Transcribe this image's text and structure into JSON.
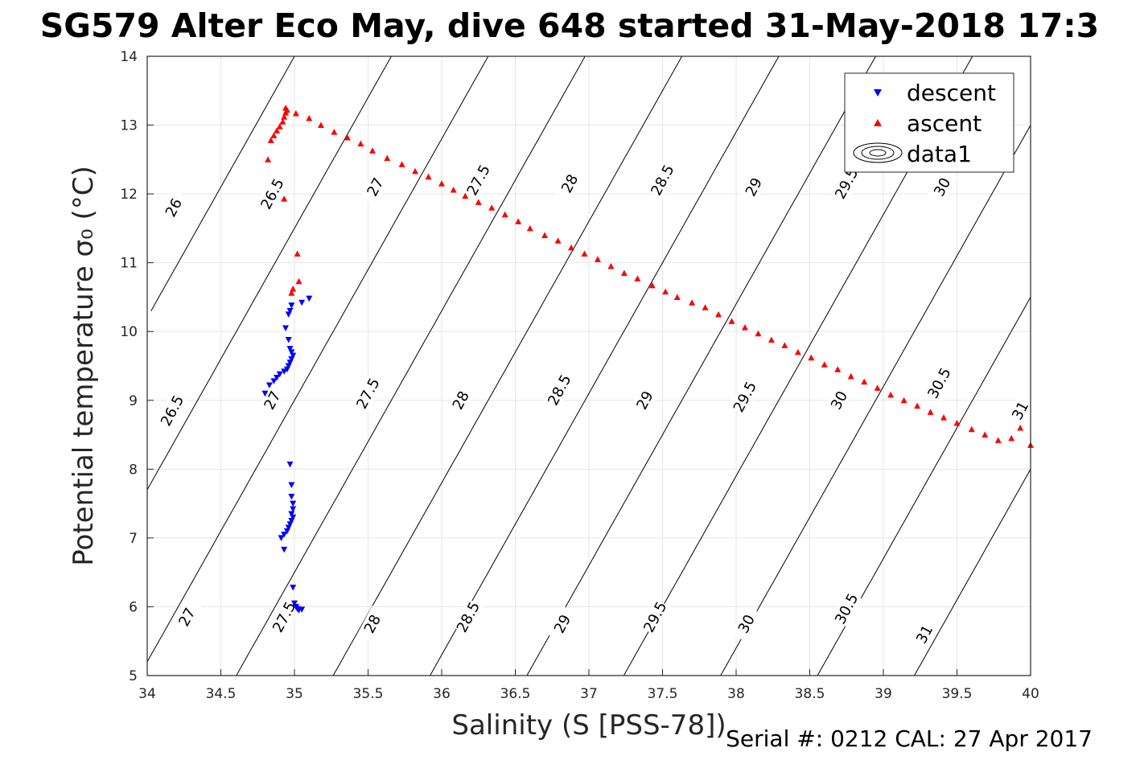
{
  "chart_data": {
    "type": "scatter",
    "title": "SG579 Alter Eco May, dive 648 started 31-May-2018 17:3",
    "xlabel": "Salinity (S [PSS-78])",
    "ylabel": "Potential temperature σ₀ (°C)",
    "footer": "Serial #: 0212  CAL: 27 Apr 2017",
    "xlim": [
      34,
      40
    ],
    "ylim": [
      5,
      14
    ],
    "xticks": [
      "34",
      "34.5",
      "35",
      "35.5",
      "36",
      "36.5",
      "37",
      "37.5",
      "38",
      "38.5",
      "39",
      "39.5",
      "40"
    ],
    "yticks": [
      "5",
      "6",
      "7",
      "8",
      "9",
      "10",
      "11",
      "12",
      "13",
      "14"
    ],
    "grid": true,
    "legend_position": "top-right",
    "legend": [
      {
        "label": "descent",
        "marker": "triangle-down",
        "color": "#0000ff"
      },
      {
        "label": "ascent",
        "marker": "triangle-up",
        "color": "#ff0000"
      },
      {
        "label": "data1",
        "marker": "contour",
        "color": "#000000"
      }
    ],
    "contour_levels": [
      26,
      26.5,
      27,
      27.5,
      28,
      28.5,
      29,
      29.5,
      30,
      30.5,
      31
    ],
    "contour_labels": [
      {
        "text": "26",
        "s": 34.18,
        "t": 11.8
      },
      {
        "text": "26.5",
        "s": 34.85,
        "t": 12.0
      },
      {
        "text": "27",
        "s": 35.55,
        "t": 12.1
      },
      {
        "text": "27.5",
        "s": 36.25,
        "t": 12.2
      },
      {
        "text": "28",
        "s": 36.87,
        "t": 12.15
      },
      {
        "text": "28.5",
        "s": 37.5,
        "t": 12.2
      },
      {
        "text": "29",
        "s": 38.12,
        "t": 12.1
      },
      {
        "text": "29.5",
        "s": 38.75,
        "t": 12.15
      },
      {
        "text": "30",
        "s": 39.4,
        "t": 12.1
      },
      {
        "text": "26.5",
        "s": 34.17,
        "t": 8.85
      },
      {
        "text": "27",
        "s": 34.85,
        "t": 9.0
      },
      {
        "text": "27.5",
        "s": 35.5,
        "t": 9.1
      },
      {
        "text": "28",
        "s": 36.13,
        "t": 9.0
      },
      {
        "text": "28.5",
        "s": 36.8,
        "t": 9.15
      },
      {
        "text": "29",
        "s": 37.38,
        "t": 9.0
      },
      {
        "text": "29.5",
        "s": 38.06,
        "t": 9.05
      },
      {
        "text": "30",
        "s": 38.7,
        "t": 9.0
      },
      {
        "text": "30.5",
        "s": 39.38,
        "t": 9.25
      },
      {
        "text": "31",
        "s": 39.93,
        "t": 8.85
      },
      {
        "text": "27",
        "s": 34.27,
        "t": 5.85
      },
      {
        "text": "27.5",
        "s": 34.93,
        "t": 5.85
      },
      {
        "text": "28",
        "s": 35.53,
        "t": 5.75
      },
      {
        "text": "28.5",
        "s": 36.18,
        "t": 5.85
      },
      {
        "text": "29",
        "s": 36.82,
        "t": 5.75
      },
      {
        "text": "29.5",
        "s": 37.45,
        "t": 5.85
      },
      {
        "text": "30",
        "s": 38.07,
        "t": 5.75
      },
      {
        "text": "30.5",
        "s": 38.75,
        "t": 5.97
      },
      {
        "text": "31",
        "s": 39.28,
        "t": 5.6
      }
    ],
    "series": [
      {
        "name": "descent",
        "marker": "triangle-down",
        "color": "#0000ff",
        "points": [
          [
            35.1,
            10.48
          ],
          [
            35.05,
            10.42
          ],
          [
            34.98,
            10.38
          ],
          [
            34.97,
            10.3
          ],
          [
            34.96,
            10.25
          ],
          [
            34.94,
            10.05
          ],
          [
            34.96,
            9.88
          ],
          [
            34.97,
            9.75
          ],
          [
            34.98,
            9.7
          ],
          [
            34.99,
            9.65
          ],
          [
            34.98,
            9.6
          ],
          [
            34.97,
            9.55
          ],
          [
            34.96,
            9.5
          ],
          [
            34.95,
            9.45
          ],
          [
            34.93,
            9.42
          ],
          [
            34.9,
            9.38
          ],
          [
            34.88,
            9.33
          ],
          [
            34.86,
            9.28
          ],
          [
            34.83,
            9.22
          ],
          [
            34.8,
            9.1
          ],
          [
            34.97,
            8.07
          ],
          [
            34.98,
            7.77
          ],
          [
            34.98,
            7.6
          ],
          [
            34.99,
            7.5
          ],
          [
            34.99,
            7.42
          ],
          [
            34.98,
            7.35
          ],
          [
            34.99,
            7.3
          ],
          [
            34.98,
            7.25
          ],
          [
            34.97,
            7.2
          ],
          [
            34.96,
            7.15
          ],
          [
            34.95,
            7.1
          ],
          [
            34.93,
            7.05
          ],
          [
            34.91,
            7.0
          ],
          [
            34.93,
            6.83
          ],
          [
            34.99,
            6.28
          ],
          [
            35.0,
            6.05
          ],
          [
            35.01,
            6.0
          ],
          [
            35.02,
            5.97
          ],
          [
            35.03,
            5.95
          ],
          [
            35.05,
            5.96
          ]
        ]
      },
      {
        "name": "ascent",
        "marker": "triangle-up",
        "color": "#ff0000",
        "points": [
          [
            34.94,
            13.25
          ],
          [
            34.95,
            13.22
          ],
          [
            34.94,
            13.18
          ],
          [
            34.93,
            13.12
          ],
          [
            34.92,
            13.05
          ],
          [
            34.9,
            12.98
          ],
          [
            34.88,
            12.92
          ],
          [
            34.86,
            12.85
          ],
          [
            34.84,
            12.78
          ],
          [
            34.82,
            12.5
          ],
          [
            34.93,
            11.93
          ],
          [
            35.02,
            11.13
          ],
          [
            35.03,
            10.73
          ],
          [
            34.99,
            10.62
          ],
          [
            34.98,
            10.56
          ],
          [
            35.01,
            13.17
          ],
          [
            35.1,
            13.1
          ],
          [
            35.18,
            13.0
          ],
          [
            35.27,
            12.9
          ],
          [
            35.36,
            12.82
          ],
          [
            35.45,
            12.73
          ],
          [
            35.53,
            12.63
          ],
          [
            35.63,
            12.52
          ],
          [
            35.73,
            12.43
          ],
          [
            35.82,
            12.33
          ],
          [
            35.91,
            12.25
          ],
          [
            36.0,
            12.15
          ],
          [
            36.08,
            12.06
          ],
          [
            36.16,
            11.97
          ],
          [
            36.25,
            11.88
          ],
          [
            36.34,
            11.8
          ],
          [
            36.43,
            11.7
          ],
          [
            36.52,
            11.6
          ],
          [
            36.6,
            11.5
          ],
          [
            36.7,
            11.4
          ],
          [
            36.79,
            11.32
          ],
          [
            36.88,
            11.22
          ],
          [
            36.97,
            11.13
          ],
          [
            37.06,
            11.05
          ],
          [
            37.15,
            10.95
          ],
          [
            37.24,
            10.85
          ],
          [
            37.33,
            10.77
          ],
          [
            37.43,
            10.67
          ],
          [
            37.52,
            10.58
          ],
          [
            37.6,
            10.5
          ],
          [
            37.7,
            10.42
          ],
          [
            37.79,
            10.35
          ],
          [
            37.88,
            10.25
          ],
          [
            37.97,
            10.15
          ],
          [
            38.06,
            10.06
          ],
          [
            38.15,
            9.97
          ],
          [
            38.24,
            9.88
          ],
          [
            38.33,
            9.8
          ],
          [
            38.42,
            9.7
          ],
          [
            38.51,
            9.62
          ],
          [
            38.6,
            9.52
          ],
          [
            38.69,
            9.45
          ],
          [
            38.78,
            9.35
          ],
          [
            38.87,
            9.27
          ],
          [
            38.96,
            9.18
          ],
          [
            39.05,
            9.08
          ],
          [
            39.14,
            9.0
          ],
          [
            39.23,
            8.92
          ],
          [
            39.32,
            8.83
          ],
          [
            39.41,
            8.75
          ],
          [
            39.5,
            8.67
          ],
          [
            39.6,
            8.58
          ],
          [
            39.69,
            8.5
          ],
          [
            39.78,
            8.42
          ],
          [
            39.87,
            8.45
          ],
          [
            39.93,
            8.6
          ],
          [
            40.0,
            8.35
          ]
        ]
      }
    ]
  }
}
